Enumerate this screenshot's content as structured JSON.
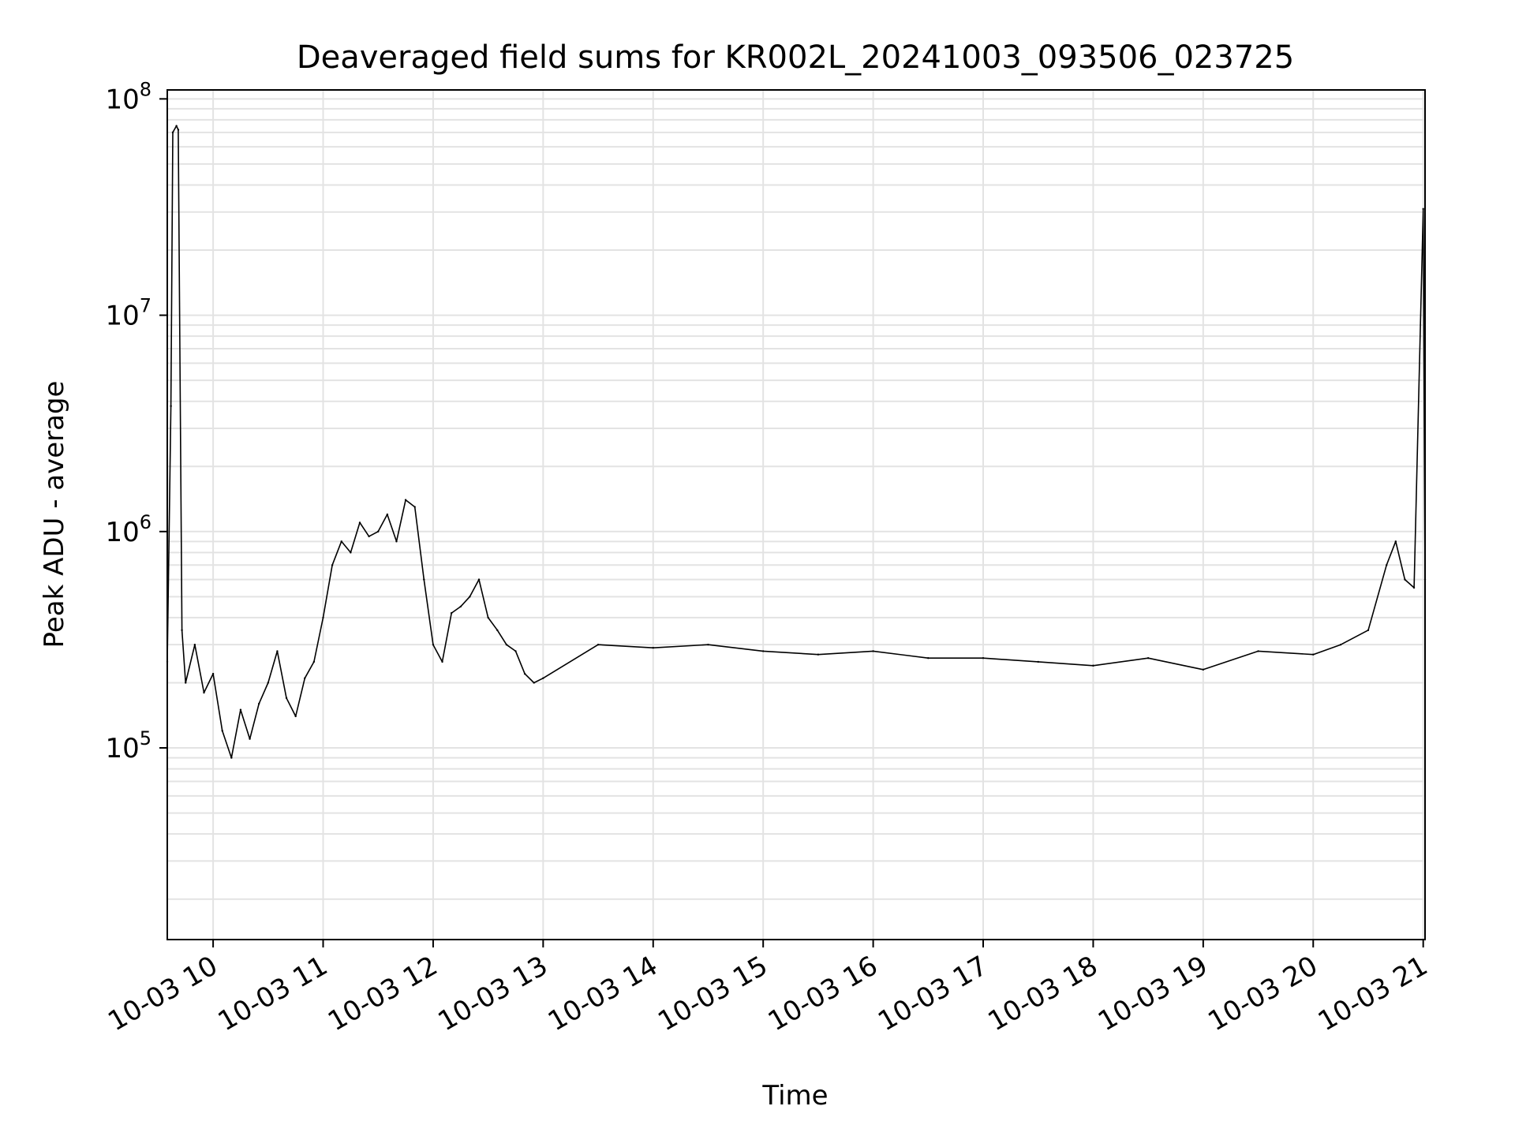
{
  "chart_data": {
    "type": "line",
    "title": "Deaveraged field sums for KR002L_20241003_093506_023725",
    "xlabel": "Time",
    "ylabel": "Peak ADU - average",
    "yscale": "log",
    "ylim": [
      13000,
      110000000
    ],
    "xlim": [
      "2024-10-03 09:35",
      "2024-10-03 21:01"
    ],
    "grid": true,
    "colors": {
      "line": "#000000",
      "grid": "#e3e3e3",
      "axes": "#000000"
    },
    "x_ticks": [
      {
        "time": "2024-10-03 10:00",
        "label": "10-03 10"
      },
      {
        "time": "2024-10-03 11:00",
        "label": "10-03 11"
      },
      {
        "time": "2024-10-03 12:00",
        "label": "10-03 12"
      },
      {
        "time": "2024-10-03 13:00",
        "label": "10-03 13"
      },
      {
        "time": "2024-10-03 14:00",
        "label": "10-03 14"
      },
      {
        "time": "2024-10-03 15:00",
        "label": "10-03 15"
      },
      {
        "time": "2024-10-03 16:00",
        "label": "10-03 16"
      },
      {
        "time": "2024-10-03 17:00",
        "label": "10-03 17"
      },
      {
        "time": "2024-10-03 18:00",
        "label": "10-03 18"
      },
      {
        "time": "2024-10-03 19:00",
        "label": "10-03 19"
      },
      {
        "time": "2024-10-03 20:00",
        "label": "10-03 20"
      },
      {
        "time": "2024-10-03 21:00",
        "label": "10-03 21"
      }
    ],
    "y_ticks": [
      {
        "value": 100000,
        "base": "10",
        "exp": "5"
      },
      {
        "value": 1000000,
        "base": "10",
        "exp": "6"
      },
      {
        "value": 10000000,
        "base": "10",
        "exp": "7"
      },
      {
        "value": 100000000,
        "base": "10",
        "exp": "8"
      }
    ],
    "series": [
      {
        "points": [
          [
            "2024-10-03 09:35",
            250000
          ],
          [
            "2024-10-03 09:37",
            3800000
          ],
          [
            "2024-10-03 09:38",
            70000000
          ],
          [
            "2024-10-03 09:40",
            75000000
          ],
          [
            "2024-10-03 09:41",
            72000000
          ],
          [
            "2024-10-03 09:43",
            350000
          ],
          [
            "2024-10-03 09:45",
            200000
          ],
          [
            "2024-10-03 09:50",
            300000
          ],
          [
            "2024-10-03 09:55",
            180000
          ],
          [
            "2024-10-03 10:00",
            220000
          ],
          [
            "2024-10-03 10:05",
            120000
          ],
          [
            "2024-10-03 10:10",
            90000
          ],
          [
            "2024-10-03 10:15",
            150000
          ],
          [
            "2024-10-03 10:20",
            110000
          ],
          [
            "2024-10-03 10:25",
            160000
          ],
          [
            "2024-10-03 10:30",
            200000
          ],
          [
            "2024-10-03 10:35",
            280000
          ],
          [
            "2024-10-03 10:40",
            170000
          ],
          [
            "2024-10-03 10:45",
            140000
          ],
          [
            "2024-10-03 10:50",
            210000
          ],
          [
            "2024-10-03 10:55",
            250000
          ],
          [
            "2024-10-03 11:00",
            400000
          ],
          [
            "2024-10-03 11:05",
            700000
          ],
          [
            "2024-10-03 11:10",
            900000
          ],
          [
            "2024-10-03 11:15",
            800000
          ],
          [
            "2024-10-03 11:20",
            1100000
          ],
          [
            "2024-10-03 11:25",
            950000
          ],
          [
            "2024-10-03 11:30",
            1000000
          ],
          [
            "2024-10-03 11:35",
            1200000
          ],
          [
            "2024-10-03 11:40",
            900000
          ],
          [
            "2024-10-03 11:45",
            1400000
          ],
          [
            "2024-10-03 11:50",
            1300000
          ],
          [
            "2024-10-03 11:55",
            600000
          ],
          [
            "2024-10-03 12:00",
            300000
          ],
          [
            "2024-10-03 12:05",
            250000
          ],
          [
            "2024-10-03 12:10",
            420000
          ],
          [
            "2024-10-03 12:15",
            450000
          ],
          [
            "2024-10-03 12:20",
            500000
          ],
          [
            "2024-10-03 12:25",
            600000
          ],
          [
            "2024-10-03 12:30",
            400000
          ],
          [
            "2024-10-03 12:35",
            350000
          ],
          [
            "2024-10-03 12:40",
            300000
          ],
          [
            "2024-10-03 12:45",
            280000
          ],
          [
            "2024-10-03 12:50",
            220000
          ],
          [
            "2024-10-03 12:55",
            200000
          ],
          [
            "2024-10-03 13:00",
            210000
          ],
          [
            "2024-10-03 13:30",
            300000
          ],
          [
            "2024-10-03 14:00",
            290000
          ],
          [
            "2024-10-03 14:30",
            300000
          ],
          [
            "2024-10-03 15:00",
            280000
          ],
          [
            "2024-10-03 15:30",
            270000
          ],
          [
            "2024-10-03 16:00",
            280000
          ],
          [
            "2024-10-03 16:30",
            260000
          ],
          [
            "2024-10-03 17:00",
            260000
          ],
          [
            "2024-10-03 17:30",
            250000
          ],
          [
            "2024-10-03 18:00",
            240000
          ],
          [
            "2024-10-03 18:30",
            260000
          ],
          [
            "2024-10-03 19:00",
            230000
          ],
          [
            "2024-10-03 19:30",
            280000
          ],
          [
            "2024-10-03 20:00",
            270000
          ],
          [
            "2024-10-03 20:15",
            300000
          ],
          [
            "2024-10-03 20:30",
            350000
          ],
          [
            "2024-10-03 20:40",
            700000
          ],
          [
            "2024-10-03 20:45",
            900000
          ],
          [
            "2024-10-03 20:50",
            600000
          ],
          [
            "2024-10-03 20:55",
            550000
          ],
          [
            "2024-10-03 21:00",
            31000000
          ],
          [
            "2024-10-03 21:01",
            600000
          ]
        ]
      }
    ]
  }
}
